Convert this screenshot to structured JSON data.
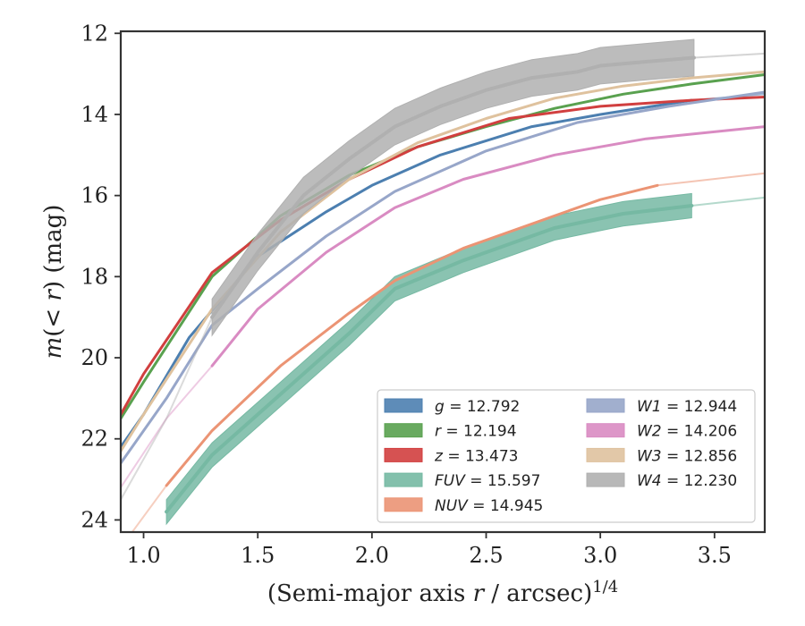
{
  "chart_data": {
    "type": "line",
    "xlabel": "(Semi-major axis r / arcsec)^{1/4}",
    "ylabel": "m(<r) (mag)",
    "xlim": [
      0.9,
      3.72
    ],
    "ylim": [
      24.3,
      11.95
    ],
    "y_inverted": true,
    "xticks": [
      "1.0",
      "1.5",
      "2.0",
      "2.5",
      "3.0",
      "3.5"
    ],
    "yticks": [
      "12",
      "14",
      "16",
      "18",
      "20",
      "22",
      "24"
    ],
    "grid": false,
    "legend": {
      "placement": "lower-right",
      "ncol": 2
    },
    "series": [
      {
        "name": "g = 12.792",
        "legend_var": "g",
        "legend_value": "12.792",
        "color": "#4c7fb0",
        "x": [
          0.9,
          1.0,
          1.2,
          1.5,
          1.8,
          2.0,
          2.3,
          2.7,
          3.0,
          3.4
        ],
        "y": [
          22.2,
          21.4,
          19.5,
          17.5,
          16.4,
          15.75,
          15.0,
          14.3,
          14.0,
          13.65
        ],
        "tail_x": [
          3.4,
          3.72
        ],
        "tail_y": [
          13.65,
          13.5
        ],
        "band": 0.06
      },
      {
        "name": "r = 12.194",
        "legend_var": "r",
        "legend_value": "12.194",
        "color": "#59a14f",
        "x": [
          0.9,
          1.0,
          1.3,
          1.6,
          1.9,
          2.2,
          2.5,
          2.8,
          3.1,
          3.4,
          3.72
        ],
        "y": [
          21.5,
          20.6,
          18.0,
          16.5,
          15.5,
          14.8,
          14.3,
          13.85,
          13.5,
          13.25,
          13.02
        ],
        "band": 0.06
      },
      {
        "name": "z = 13.473",
        "legend_var": "z",
        "legend_value": "13.473",
        "color": "#d13f3f",
        "x": [
          0.9,
          1.0,
          1.3,
          1.6,
          1.9,
          2.2,
          2.6,
          3.0,
          3.4,
          3.72
        ],
        "y": [
          21.4,
          20.4,
          17.9,
          16.6,
          15.6,
          14.8,
          14.1,
          13.8,
          13.65,
          13.57
        ],
        "band": 0.06
      },
      {
        "name": "FUV = 15.597",
        "legend_var": "FUV",
        "legend_value": "15.597",
        "color": "#76b9a3",
        "x": [
          1.1,
          1.3,
          1.6,
          1.9,
          2.1,
          2.4,
          2.8,
          3.1,
          3.4
        ],
        "y": [
          23.8,
          22.4,
          20.9,
          19.4,
          18.3,
          17.6,
          16.8,
          16.45,
          16.25
        ],
        "tail_x": [
          3.4,
          3.72
        ],
        "tail_y": [
          16.25,
          16.05
        ],
        "band": 0.3
      },
      {
        "name": "NUV = 14.945",
        "legend_var": "NUV",
        "legend_value": "14.945",
        "color": "#eb9474",
        "x": [
          1.1,
          1.3,
          1.6,
          1.9,
          2.1,
          2.4,
          2.8,
          3.0,
          3.25
        ],
        "y": [
          23.15,
          21.8,
          20.2,
          18.9,
          18.1,
          17.3,
          16.5,
          16.1,
          15.75
        ],
        "tail_x": [
          3.25,
          3.72
        ],
        "tail_y": [
          15.75,
          15.45
        ],
        "head_x": [
          0.95,
          1.1
        ],
        "head_y": [
          24.3,
          23.15
        ],
        "band": 0.1
      },
      {
        "name": "W1 = 12.944",
        "legend_var": "W1",
        "legend_value": "12.944",
        "color": "#97a6c9",
        "x": [
          0.9,
          1.1,
          1.3,
          1.5,
          1.8,
          2.1,
          2.5,
          2.9,
          3.3,
          3.72
        ],
        "y": [
          22.6,
          21.0,
          19.2,
          18.3,
          17.0,
          15.9,
          14.9,
          14.2,
          13.8,
          13.45
        ],
        "band": 0.06
      },
      {
        "name": "W2 = 14.206",
        "legend_var": "W2",
        "legend_value": "14.206",
        "color": "#d98bc2",
        "x": [
          1.3,
          1.5,
          1.8,
          2.1,
          2.4,
          2.8,
          3.2,
          3.72
        ],
        "y": [
          20.2,
          18.8,
          17.4,
          16.3,
          15.6,
          15.0,
          14.6,
          14.3
        ],
        "head_x": [
          0.9,
          1.1,
          1.3
        ],
        "head_y": [
          23.2,
          21.5,
          20.2
        ],
        "band": 0.06
      },
      {
        "name": "W3 = 12.856",
        "legend_var": "W3",
        "legend_value": "12.856",
        "color": "#dfc29e",
        "x": [
          0.9,
          1.0,
          1.3,
          1.6,
          1.9,
          2.2,
          2.5,
          2.8,
          3.1,
          3.4,
          3.72
        ],
        "y": [
          22.3,
          21.4,
          18.8,
          16.9,
          15.6,
          14.7,
          14.1,
          13.6,
          13.3,
          13.1,
          12.95
        ],
        "band": 0.06
      },
      {
        "name": "W4 = 12.230",
        "legend_var": "W4",
        "legend_value": "12.230",
        "color": "#b0b0b0",
        "x": [
          1.3,
          1.5,
          1.7,
          1.9,
          2.1,
          2.3,
          2.5,
          2.7,
          2.9,
          3.0,
          3.2,
          3.41
        ],
        "y": [
          19.0,
          17.4,
          16.0,
          15.1,
          14.3,
          13.8,
          13.4,
          13.1,
          12.95,
          12.8,
          12.7,
          12.6
        ],
        "tail_x": [
          3.41,
          3.72
        ],
        "tail_y": [
          12.6,
          12.5
        ],
        "head_x": [
          0.9,
          1.1,
          1.3
        ],
        "head_y": [
          23.5,
          21.5,
          19.0
        ],
        "band": 0.45
      }
    ]
  }
}
